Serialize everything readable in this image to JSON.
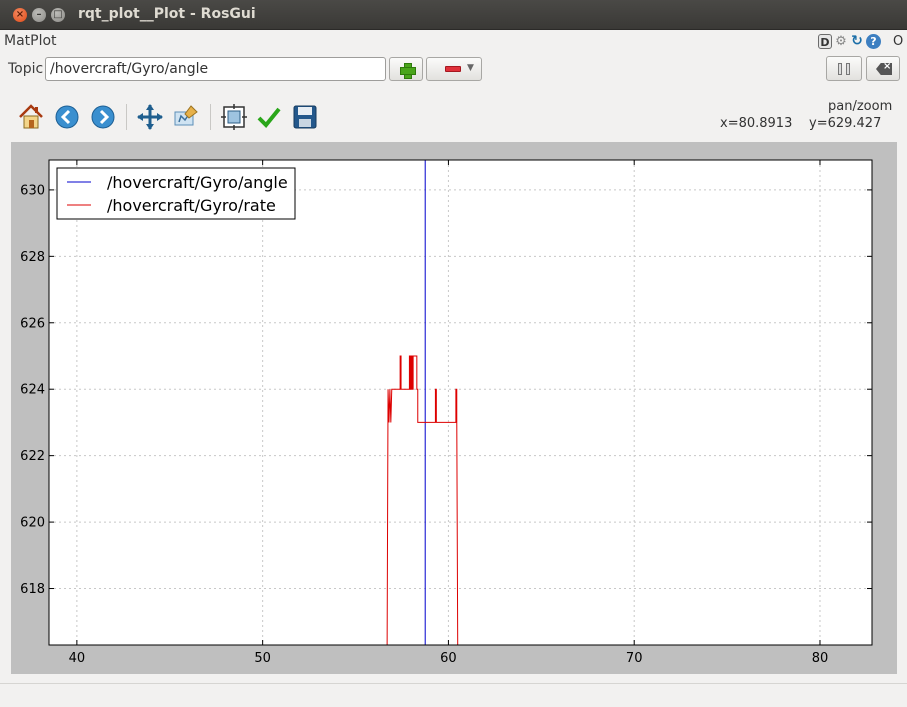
{
  "window": {
    "title": "rqt_plot__Plot - RosGui",
    "close_glyph": "×",
    "min_glyph": "–",
    "max_glyph": "□"
  },
  "plugin": {
    "title": "MatPlot",
    "help_glyph": "?",
    "d_glyph": "D",
    "close_glyph": "O"
  },
  "topic": {
    "label": "Topic",
    "value": "/hovercraft/Gyro/angle"
  },
  "toolbar": {
    "icons": [
      "home-icon",
      "back-icon",
      "forward-icon",
      "pan-icon",
      "zoom-icon",
      "subplots-icon",
      "edit-curves-icon",
      "save-icon"
    ]
  },
  "coordinates": {
    "mode": "pan/zoom",
    "x": "x=80.8913",
    "y": "y=629.427"
  },
  "colors": {
    "angle": "#0000cc",
    "rate": "#dd0000",
    "accent_add": "#4aa51b",
    "accent_remove": "#e0303a"
  },
  "chart_data": {
    "type": "line",
    "xlim": [
      38.5,
      82.8
    ],
    "ylim": [
      616.3,
      630.9
    ],
    "xticks": [
      40,
      50,
      60,
      70,
      80
    ],
    "yticks": [
      618,
      620,
      622,
      624,
      626,
      628,
      630
    ],
    "grid": true,
    "legend": "top-left",
    "series": [
      {
        "name": "/hovercraft/Gyro/angle",
        "color": "#0000cc",
        "x": [
          58.75,
          58.75
        ],
        "y": [
          616.3,
          630.9
        ]
      },
      {
        "name": "/hovercraft/Gyro/rate",
        "color": "#dd0000",
        "x": [
          56.7,
          56.75,
          56.75,
          56.8,
          56.8,
          56.85,
          56.85,
          56.9,
          56.9,
          56.95,
          57.4,
          57.4,
          57.45,
          57.45,
          57.9,
          57.9,
          57.95,
          57.95,
          58.0,
          58.0,
          58.05,
          58.05,
          58.1,
          58.1,
          58.3,
          58.3,
          58.35,
          58.35,
          59.3,
          59.3,
          59.35,
          59.35,
          60.4,
          60.4,
          60.45,
          60.45,
          60.5
        ],
        "y": [
          616.3,
          624,
          624,
          623,
          623,
          624,
          624,
          623,
          623,
          624,
          624,
          625,
          625,
          624,
          624,
          625,
          625,
          624,
          624,
          625,
          625,
          624,
          624,
          625,
          625,
          624,
          624,
          623,
          623,
          624,
          624,
          623,
          623,
          624,
          624,
          623,
          616.3
        ]
      }
    ]
  }
}
